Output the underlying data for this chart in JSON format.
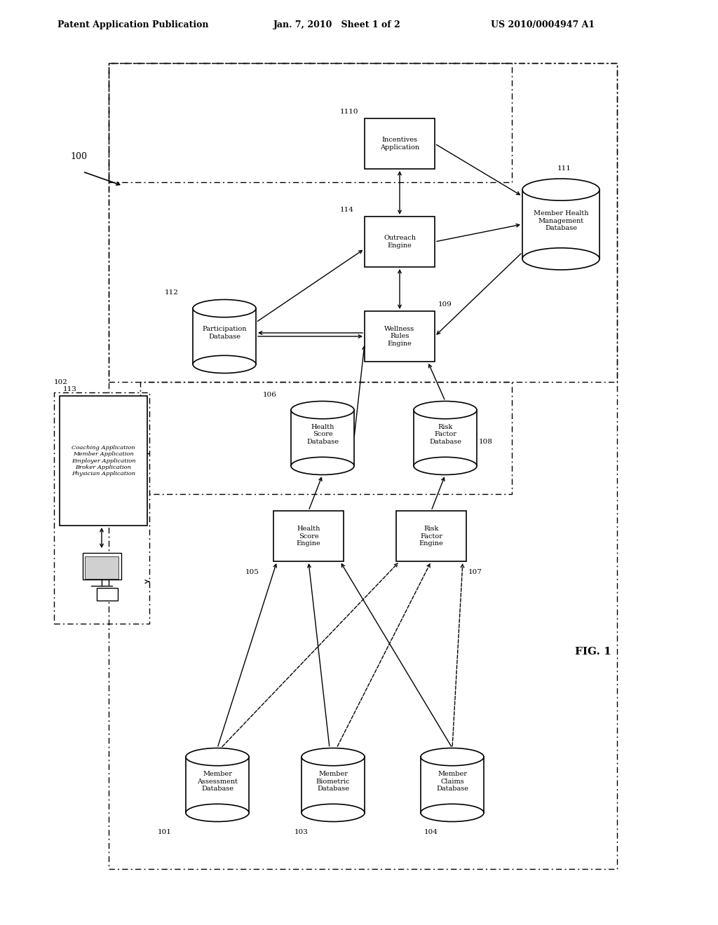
{
  "header_left": "Patent Application Publication",
  "header_mid": "Jan. 7, 2010   Sheet 1 of 2",
  "header_right": "US 2010/0004947 A1",
  "fig_label": "FIG. 1",
  "background": "#ffffff"
}
